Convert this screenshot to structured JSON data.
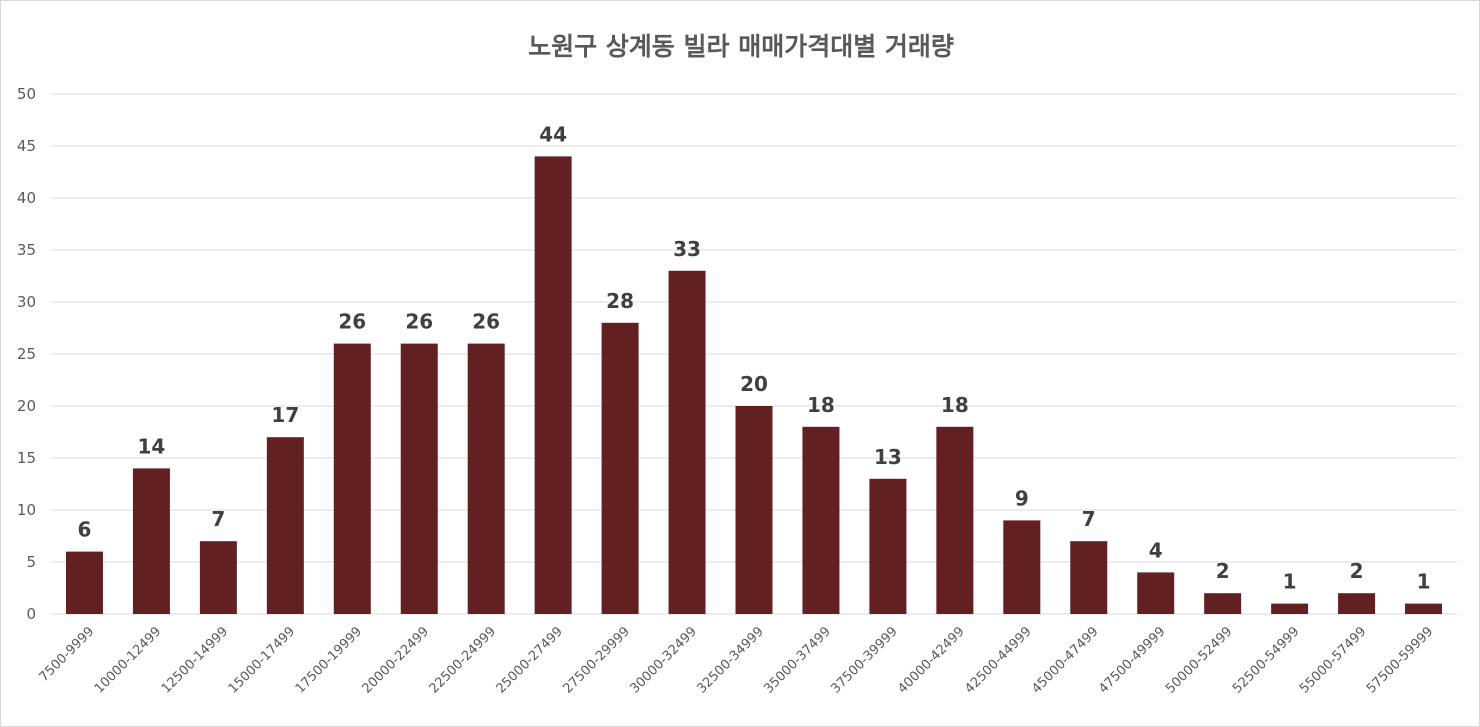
{
  "chart_data": {
    "type": "bar",
    "title": "노원구 상계동 빌라 매매가격대별 거래량",
    "categories": [
      "7500-9999",
      "10000-12499",
      "12500-14999",
      "15000-17499",
      "17500-19999",
      "20000-22499",
      "22500-24999",
      "25000-27499",
      "27500-29999",
      "30000-32499",
      "32500-34999",
      "35000-37499",
      "37500-39999",
      "40000-42499",
      "42500-44999",
      "45000-47499",
      "47500-49999",
      "50000-52499",
      "52500-54999",
      "55000-57499",
      "57500-59999"
    ],
    "values": [
      6,
      14,
      7,
      17,
      26,
      26,
      26,
      44,
      28,
      33,
      20,
      18,
      13,
      18,
      9,
      7,
      4,
      2,
      1,
      2,
      1
    ],
    "ylim": [
      0,
      50
    ],
    "yticks": [
      "0",
      "5",
      "10",
      "15",
      "20",
      "25",
      "30",
      "35",
      "40",
      "45",
      "50"
    ],
    "grid": true,
    "legend": "none",
    "colors": {
      "bar": "#622022",
      "grid": "#d9d9d9",
      "text": "#595959",
      "label": "#404040"
    }
  }
}
